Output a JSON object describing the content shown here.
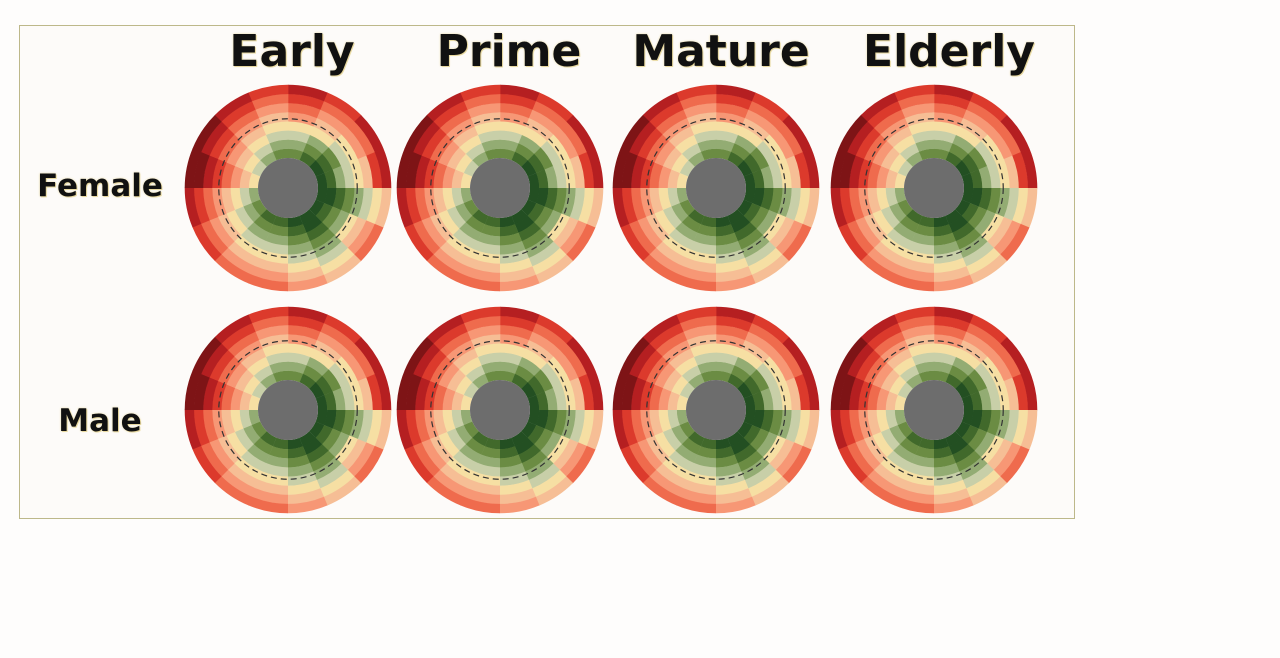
{
  "chart_data": {
    "type": "polar-heatmap",
    "columns": [
      "Early",
      "Prime",
      "Mature",
      "Elderly"
    ],
    "rows": [
      "Female",
      "Male"
    ],
    "n_sectors": 16,
    "n_rings": 8,
    "colormap": [
      "#7e1416",
      "#b51f21",
      "#dc3a2c",
      "#ef6b4d",
      "#f79775",
      "#f6be95",
      "#f6dfa3",
      "#c8cfa8",
      "#93ac73",
      "#6b8c43",
      "#41692b",
      "#234f22"
    ],
    "center_color": "#6d6d6d",
    "reference_ring_style": "dashed",
    "base_pattern": [
      [
        9,
        8,
        7,
        6,
        4,
        3,
        2,
        1
      ],
      [
        10,
        9,
        8,
        6,
        5,
        4,
        3,
        2
      ],
      [
        11,
        10,
        9,
        7,
        6,
        4,
        3,
        1
      ],
      [
        11,
        10,
        8,
        7,
        6,
        5,
        2,
        1
      ],
      [
        11,
        11,
        10,
        9,
        8,
        7,
        6,
        5
      ],
      [
        11,
        10,
        9,
        8,
        6,
        5,
        4,
        3
      ],
      [
        11,
        11,
        10,
        9,
        8,
        7,
        6,
        5
      ],
      [
        11,
        10,
        9,
        8,
        7,
        6,
        5,
        4
      ],
      [
        10,
        9,
        8,
        7,
        6,
        5,
        4,
        3
      ],
      [
        10,
        9,
        8,
        7,
        6,
        5,
        4,
        3
      ],
      [
        9,
        8,
        7,
        6,
        5,
        4,
        3,
        2
      ],
      [
        8,
        7,
        6,
        5,
        4,
        3,
        2,
        1
      ],
      [
        6,
        5,
        4,
        3,
        2,
        1,
        0,
        0
      ],
      [
        7,
        6,
        5,
        4,
        3,
        2,
        1,
        0
      ],
      [
        8,
        7,
        6,
        5,
        4,
        3,
        2,
        1
      ],
      [
        9,
        8,
        7,
        6,
        5,
        4,
        3,
        2
      ]
    ],
    "panel_offsets": [
      [
        0,
        0,
        0,
        0
      ],
      [
        0,
        0,
        0,
        0
      ]
    ]
  }
}
